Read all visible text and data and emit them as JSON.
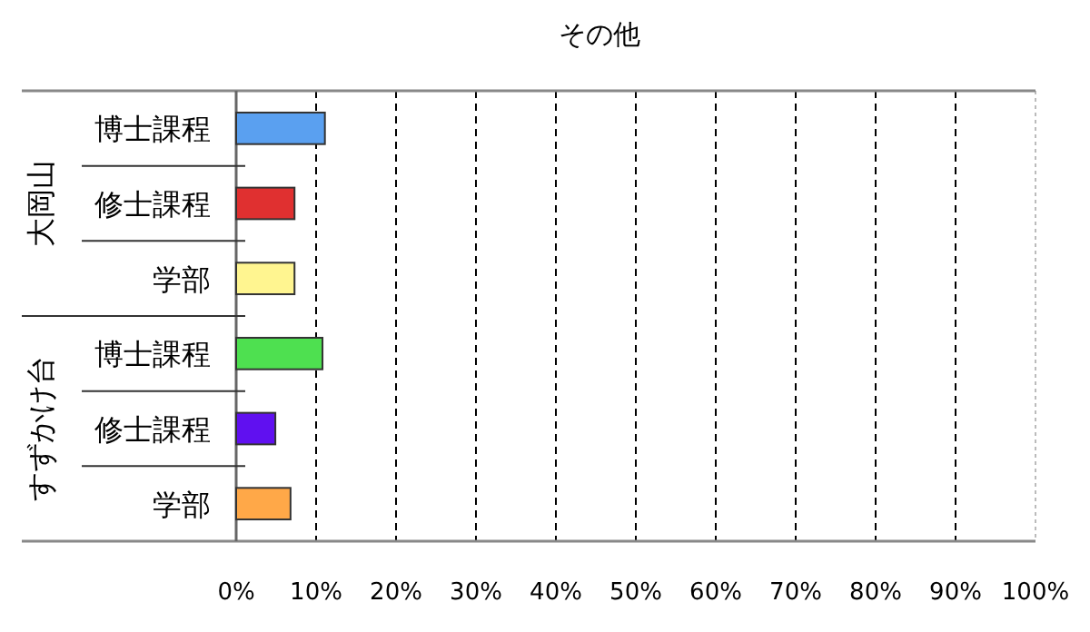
{
  "chart_data": {
    "type": "bar",
    "orientation": "horizontal",
    "title": "その他",
    "categories": [
      "博士課程",
      "修士課程",
      "学部",
      "博士課程",
      "修士課程",
      "学部"
    ],
    "values": [
      11.1,
      7.3,
      7.3,
      10.8,
      4.9,
      6.8
    ],
    "colors": [
      "#5aa0f0",
      "#e03030",
      "#fff590",
      "#4ee050",
      "#6010f0",
      "#ffa848"
    ],
    "xlim": [
      0,
      100
    ],
    "xticks": [
      {
        "value": 0,
        "label": "0%"
      },
      {
        "value": 10,
        "label": "10%"
      },
      {
        "value": 20,
        "label": "20%"
      },
      {
        "value": 30,
        "label": "30%"
      },
      {
        "value": 40,
        "label": "40%"
      },
      {
        "value": 50,
        "label": "50%"
      },
      {
        "value": 60,
        "label": "60%"
      },
      {
        "value": 70,
        "label": "70%"
      },
      {
        "value": 80,
        "label": "80%"
      },
      {
        "value": 90,
        "label": "90%"
      },
      {
        "value": 100,
        "label": "100%"
      }
    ],
    "grid": "x",
    "annotations": [
      "大岡山",
      "すずかけ台"
    ]
  }
}
